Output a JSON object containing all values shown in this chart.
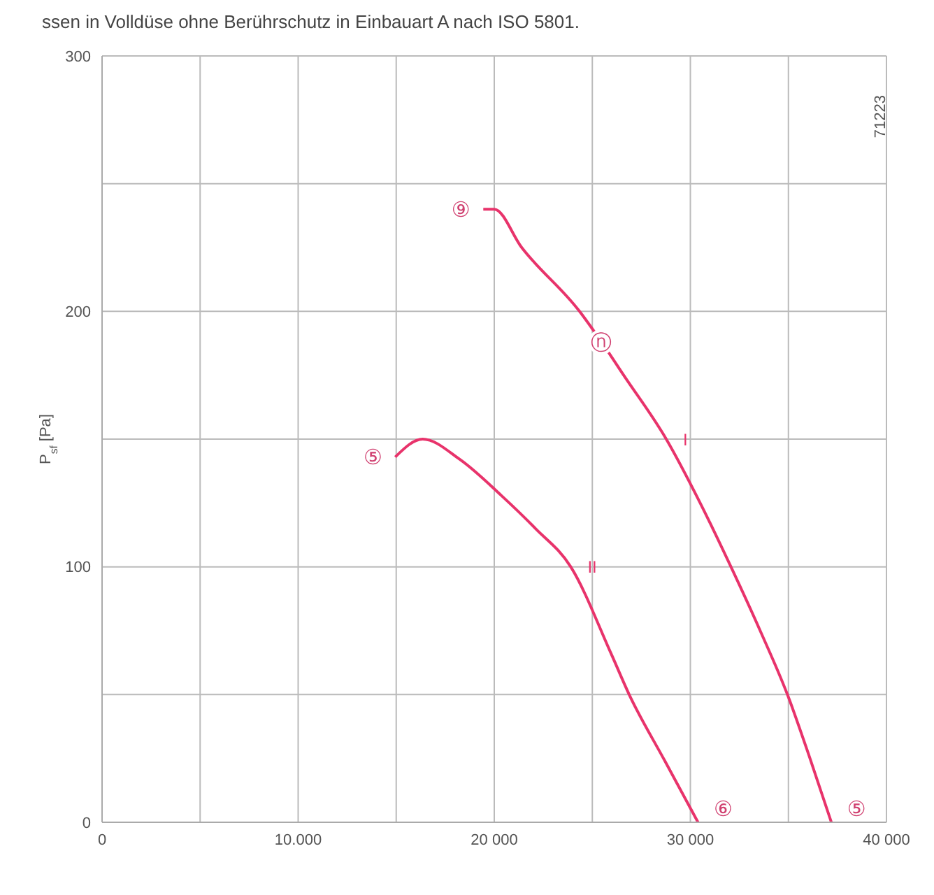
{
  "chart_data": {
    "type": "line",
    "title": "ssen in Volldüse ohne Berührschutz in Einbauart A nach ISO 5801.",
    "ylabel": "P$_{sf}$ [Pa]",
    "series": [
      {
        "name": "I",
        "color": "#e8336b",
        "x": [
          19440,
          20000,
          21400,
          24350,
          25470,
          26600,
          28770,
          30500,
          32070,
          33560,
          34950,
          36100,
          37190
        ],
        "values": [
          240,
          240,
          225,
          200,
          188,
          175,
          150,
          125,
          100,
          75,
          50,
          25,
          0
        ]
      },
      {
        "name": "II",
        "color": "#e8336b",
        "x": [
          14950,
          16350,
          18250,
          20350,
          22100,
          23900,
          25960,
          26880,
          28700,
          30390
        ],
        "values": [
          143,
          150,
          142,
          128,
          115,
          100,
          66,
          50,
          24,
          0
        ]
      }
    ],
    "xlim": [
      0,
      40000
    ],
    "xticks": [
      0,
      {
        "value": 5000,
        "label": null
      },
      {
        "value": 10000,
        "label": "10.000"
      },
      {
        "value": 15000,
        "label": null
      },
      {
        "value": 20000,
        "label": "20 000"
      },
      {
        "value": 25000,
        "label": null
      },
      {
        "value": 30000,
        "label": "30 000"
      },
      {
        "value": 35000,
        "label": null
      },
      {
        "value": 40000,
        "label": "40 000"
      }
    ],
    "ylim": [
      0,
      300
    ],
    "yticks": [
      0,
      {
        "value": 50,
        "label": null
      },
      100,
      {
        "value": 150,
        "label": null
      },
      200,
      {
        "value": 250,
        "label": null
      },
      300
    ],
    "grid": true,
    "annotations": [
      {
        "text": "⑨",
        "x": 19440,
        "y": 240
      },
      {
        "text": "ⓝ",
        "x": 25470,
        "y": 188
      },
      {
        "text": "⑤",
        "x": 37190,
        "y": 0
      },
      {
        "text": "⑥",
        "x": 30390,
        "y": 0
      },
      {
        "text": "⑤",
        "x": 14950,
        "y": 143
      },
      "71223"
    ]
  }
}
